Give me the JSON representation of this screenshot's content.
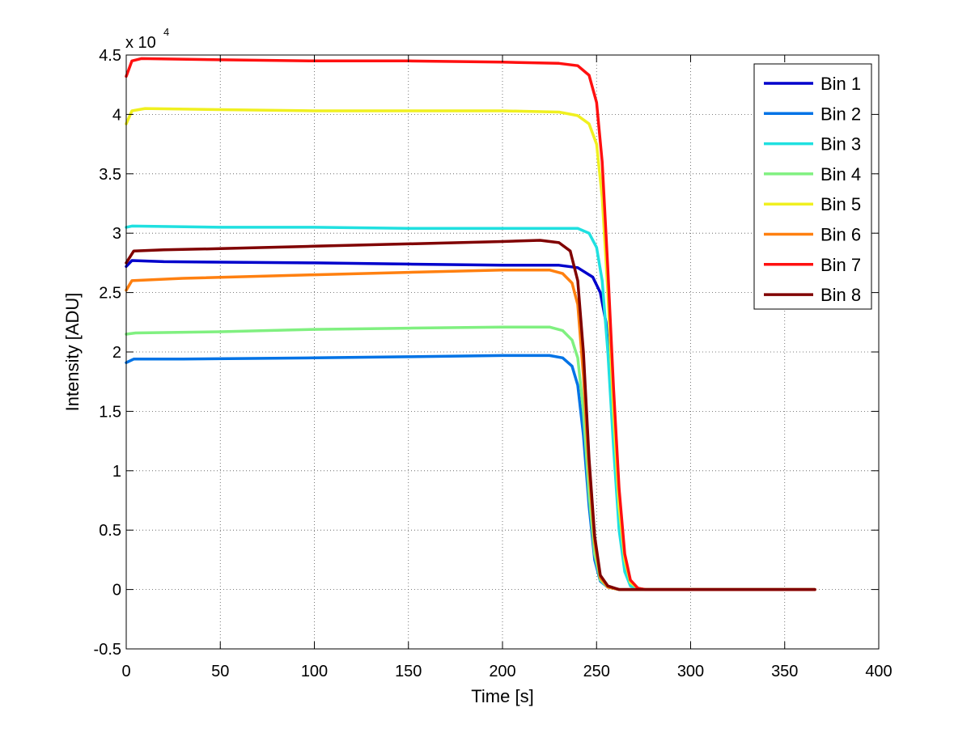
{
  "chart_data": {
    "type": "line",
    "xlabel": "Time [s]",
    "ylabel": "Intensity [ADU]",
    "y_exponent_base": "x 10",
    "y_exponent_power": "4",
    "xlim": [
      0,
      400
    ],
    "ylim": [
      -0.5,
      4.5
    ],
    "xticks": [
      0,
      50,
      100,
      150,
      200,
      250,
      300,
      350,
      400
    ],
    "xtick_labels": [
      "0",
      "50",
      "100",
      "150",
      "200",
      "250",
      "300",
      "350",
      "400"
    ],
    "yticks": [
      -0.5,
      0,
      0.5,
      1,
      1.5,
      2,
      2.5,
      3,
      3.5,
      4,
      4.5
    ],
    "ytick_labels": [
      "-0.5",
      "0",
      "0.5",
      "1",
      "1.5",
      "2",
      "2.5",
      "3",
      "3.5",
      "4",
      "4.5"
    ],
    "grid": true,
    "legend_position": "top-right",
    "series": [
      {
        "name": "Bin 1",
        "color": "#0000cc",
        "points": [
          [
            0,
            2.72
          ],
          [
            3,
            2.77
          ],
          [
            20,
            2.76
          ],
          [
            100,
            2.75
          ],
          [
            150,
            2.74
          ],
          [
            200,
            2.73
          ],
          [
            230,
            2.73
          ],
          [
            240,
            2.71
          ],
          [
            248,
            2.63
          ],
          [
            252,
            2.5
          ],
          [
            255,
            2.25
          ],
          [
            258,
            1.7
          ],
          [
            261,
            0.9
          ],
          [
            264,
            0.35
          ],
          [
            267,
            0.1
          ],
          [
            270,
            0.02
          ],
          [
            275,
            0.0
          ],
          [
            366,
            0.0
          ]
        ]
      },
      {
        "name": "Bin 2",
        "color": "#0073e6",
        "points": [
          [
            0,
            1.91
          ],
          [
            4,
            1.94
          ],
          [
            30,
            1.94
          ],
          [
            100,
            1.95
          ],
          [
            150,
            1.96
          ],
          [
            200,
            1.97
          ],
          [
            225,
            1.97
          ],
          [
            232,
            1.95
          ],
          [
            237,
            1.88
          ],
          [
            240,
            1.72
          ],
          [
            243,
            1.3
          ],
          [
            246,
            0.7
          ],
          [
            249,
            0.25
          ],
          [
            252,
            0.07
          ],
          [
            256,
            0.02
          ],
          [
            262,
            0.0
          ],
          [
            366,
            0.0
          ]
        ]
      },
      {
        "name": "Bin 3",
        "color": "#20e0e0",
        "points": [
          [
            0,
            3.05
          ],
          [
            3,
            3.06
          ],
          [
            50,
            3.05
          ],
          [
            100,
            3.05
          ],
          [
            150,
            3.04
          ],
          [
            200,
            3.04
          ],
          [
            240,
            3.04
          ],
          [
            246,
            3.0
          ],
          [
            250,
            2.88
          ],
          [
            253,
            2.6
          ],
          [
            256,
            2.0
          ],
          [
            259,
            1.2
          ],
          [
            262,
            0.5
          ],
          [
            265,
            0.15
          ],
          [
            268,
            0.03
          ],
          [
            273,
            0.0
          ],
          [
            366,
            0.0
          ]
        ]
      },
      {
        "name": "Bin 4",
        "color": "#80f080",
        "points": [
          [
            0,
            2.15
          ],
          [
            5,
            2.16
          ],
          [
            50,
            2.17
          ],
          [
            100,
            2.19
          ],
          [
            150,
            2.2
          ],
          [
            200,
            2.21
          ],
          [
            225,
            2.21
          ],
          [
            232,
            2.18
          ],
          [
            237,
            2.1
          ],
          [
            240,
            1.95
          ],
          [
            243,
            1.5
          ],
          [
            246,
            0.8
          ],
          [
            249,
            0.3
          ],
          [
            252,
            0.08
          ],
          [
            256,
            0.02
          ],
          [
            262,
            0.0
          ],
          [
            366,
            0.0
          ]
        ]
      },
      {
        "name": "Bin 5",
        "color": "#f0f020",
        "points": [
          [
            0,
            3.92
          ],
          [
            3,
            4.03
          ],
          [
            10,
            4.05
          ],
          [
            50,
            4.04
          ],
          [
            100,
            4.03
          ],
          [
            150,
            4.03
          ],
          [
            200,
            4.03
          ],
          [
            230,
            4.02
          ],
          [
            240,
            3.99
          ],
          [
            246,
            3.92
          ],
          [
            250,
            3.75
          ],
          [
            253,
            3.3
          ],
          [
            256,
            2.5
          ],
          [
            259,
            1.5
          ],
          [
            262,
            0.7
          ],
          [
            265,
            0.25
          ],
          [
            268,
            0.06
          ],
          [
            272,
            0.01
          ],
          [
            276,
            0.0
          ],
          [
            366,
            0.0
          ]
        ]
      },
      {
        "name": "Bin 6",
        "color": "#ff8010",
        "points": [
          [
            0,
            2.52
          ],
          [
            3,
            2.6
          ],
          [
            30,
            2.62
          ],
          [
            100,
            2.65
          ],
          [
            150,
            2.67
          ],
          [
            200,
            2.69
          ],
          [
            225,
            2.69
          ],
          [
            232,
            2.66
          ],
          [
            237,
            2.58
          ],
          [
            240,
            2.4
          ],
          [
            243,
            1.8
          ],
          [
            246,
            1.0
          ],
          [
            249,
            0.4
          ],
          [
            252,
            0.1
          ],
          [
            256,
            0.02
          ],
          [
            262,
            0.0
          ],
          [
            366,
            0.0
          ]
        ]
      },
      {
        "name": "Bin 7",
        "color": "#ff1010",
        "points": [
          [
            0,
            4.32
          ],
          [
            3,
            4.45
          ],
          [
            8,
            4.47
          ],
          [
            50,
            4.46
          ],
          [
            100,
            4.45
          ],
          [
            150,
            4.45
          ],
          [
            200,
            4.44
          ],
          [
            230,
            4.43
          ],
          [
            240,
            4.41
          ],
          [
            246,
            4.33
          ],
          [
            250,
            4.1
          ],
          [
            253,
            3.6
          ],
          [
            256,
            2.7
          ],
          [
            259,
            1.7
          ],
          [
            262,
            0.85
          ],
          [
            265,
            0.3
          ],
          [
            268,
            0.08
          ],
          [
            272,
            0.01
          ],
          [
            276,
            0.0
          ],
          [
            366,
            0.0
          ]
        ]
      },
      {
        "name": "Bin 8",
        "color": "#800000",
        "points": [
          [
            0,
            2.75
          ],
          [
            4,
            2.85
          ],
          [
            20,
            2.86
          ],
          [
            50,
            2.87
          ],
          [
            100,
            2.89
          ],
          [
            150,
            2.91
          ],
          [
            200,
            2.93
          ],
          [
            220,
            2.94
          ],
          [
            230,
            2.92
          ],
          [
            236,
            2.85
          ],
          [
            240,
            2.6
          ],
          [
            243,
            2.0
          ],
          [
            246,
            1.1
          ],
          [
            249,
            0.45
          ],
          [
            252,
            0.12
          ],
          [
            256,
            0.03
          ],
          [
            262,
            0.0
          ],
          [
            366,
            0.0
          ]
        ]
      }
    ]
  }
}
